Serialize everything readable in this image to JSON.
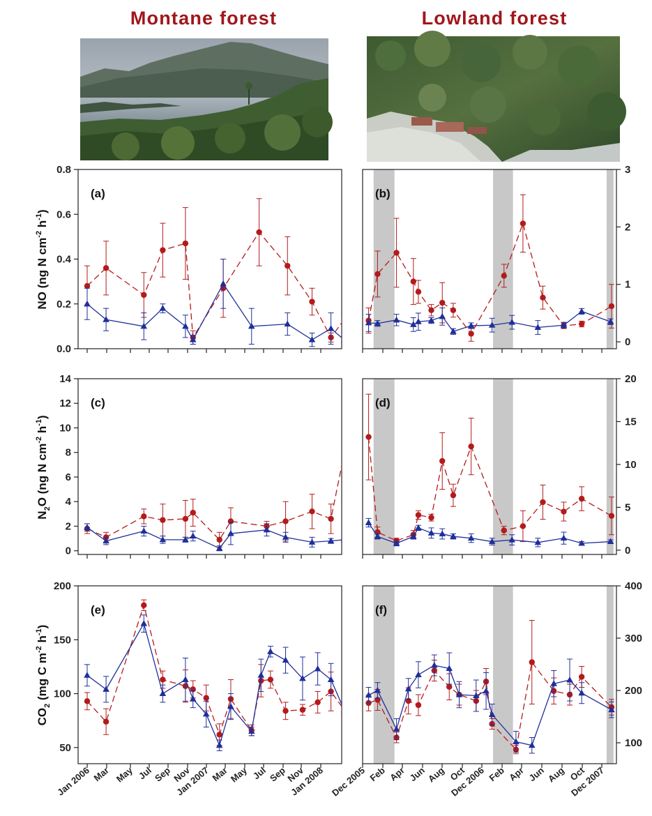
{
  "columns": [
    {
      "title": "Montane forest",
      "photo": "montane-lake-forest-photo"
    },
    {
      "title": "Lowland forest",
      "photo": "lowland-forest-aerial-photo"
    }
  ],
  "colors": {
    "title": "#a0161b",
    "red": "#b31b1b",
    "blue": "#1f2f9a",
    "shade": "#c8c8c8"
  },
  "x_tick_labels": {
    "montane": [
      "Jan 2006",
      "Mar",
      "May",
      "Jul",
      "Sep",
      "Nov",
      "Jan 2007",
      "Mar",
      "May",
      "Jul",
      "Sep",
      "Nov",
      "Jan 2008"
    ],
    "lowland": [
      "Dec 2005",
      "Feb",
      "Apr",
      "Jun",
      "Aug",
      "Oct",
      "Dec 2006",
      "Feb",
      "Apr",
      "Jun",
      "Aug",
      "Oct",
      "Dec 2007"
    ]
  },
  "rows": [
    {
      "ylabel_parts": [
        "NO (ng N cm",
        "-2",
        " h",
        "-1",
        ")"
      ]
    },
    {
      "ylabel_parts": [
        "N",
        "2",
        "O (ng N cm",
        "-2",
        " h",
        "-1",
        ")"
      ]
    },
    {
      "ylabel_parts": [
        "CO",
        "2",
        " (mg C m",
        "-2",
        " h",
        "-1",
        ")"
      ]
    }
  ],
  "chart_data": [
    {
      "id": "a",
      "type": "line",
      "panel_label": "(a)",
      "site": "Montane forest",
      "x_unit": "month index (0 = Jan 2006)",
      "ylim": [
        0,
        0.8
      ],
      "yticks": [
        "0.0",
        "0.2",
        "0.4",
        "0.6",
        "0.8"
      ],
      "ytick_values": [
        0,
        0.2,
        0.4,
        0.6,
        0.8
      ],
      "yaxis_side": "left",
      "dry_season_shading": [],
      "series": [
        {
          "color": "red",
          "marker": "circle",
          "dashed": true,
          "x": [
            0,
            1,
            3,
            4,
            5.2,
            5.6,
            7.2,
            9.1,
            10.6,
            11.9,
            12.9,
            13.6
          ],
          "y": [
            0.28,
            0.36,
            0.24,
            0.44,
            0.47,
            0.05,
            0.27,
            0.52,
            0.37,
            0.21,
            0.05,
            0.13
          ],
          "err": [
            0.09,
            0.12,
            0.1,
            0.12,
            0.16,
            0.03,
            0.13,
            0.15,
            0.13,
            0.06,
            0.02,
            0.01
          ]
        },
        {
          "color": "blue",
          "marker": "triangle",
          "dashed": false,
          "x": [
            0,
            1,
            3,
            4,
            5.2,
            5.6,
            7.2,
            8.7,
            10.6,
            11.9,
            12.9,
            13.6
          ],
          "y": [
            0.2,
            0.13,
            0.1,
            0.18,
            0.1,
            0.04,
            0.29,
            0.1,
            0.11,
            0.04,
            0.09,
            0.04
          ],
          "err": [
            0.07,
            0.05,
            0.06,
            0.02,
            0.05,
            0.02,
            0.11,
            0.08,
            0.05,
            0.03,
            0.07,
            0.04
          ]
        }
      ]
    },
    {
      "id": "b",
      "type": "line",
      "panel_label": "(b)",
      "site": "Lowland forest",
      "x_unit": "month index (0 = Dec 2005)",
      "ylim": [
        -0.12,
        3
      ],
      "yticks": [
        "0",
        "1",
        "2",
        "3"
      ],
      "ytick_values": [
        0,
        1,
        2,
        3
      ],
      "yaxis_side": "right",
      "dry_season_shading": [
        [
          1.1,
          3.2
        ],
        [
          13.1,
          15.1
        ],
        [
          24.5,
          25.2
        ]
      ],
      "series": [
        {
          "color": "red",
          "marker": "circle",
          "dashed": true,
          "x": [
            0.6,
            1.5,
            3.4,
            5.1,
            5.6,
            6.9,
            8.0,
            9.1,
            10.9,
            14.2,
            16.1,
            18.1,
            20.2,
            22.0,
            25.0
          ],
          "y": [
            0.37,
            1.18,
            1.55,
            1.05,
            0.87,
            0.55,
            0.68,
            0.55,
            0.14,
            1.15,
            2.06,
            0.77,
            0.28,
            0.31,
            0.62
          ],
          "err": [
            0.22,
            0.4,
            0.6,
            0.4,
            0.2,
            0.1,
            0.35,
            0.12,
            0.13,
            0.2,
            0.5,
            0.2,
            0.05,
            0.05,
            0.38
          ]
        },
        {
          "color": "blue",
          "marker": "triangle",
          "dashed": false,
          "x": [
            0.6,
            1.5,
            3.4,
            5.1,
            5.6,
            6.9,
            8.0,
            9.1,
            10.9,
            13.0,
            15.0,
            17.6,
            20.2,
            22.0,
            24.9
          ],
          "y": [
            0.33,
            0.32,
            0.38,
            0.3,
            0.35,
            0.37,
            0.44,
            0.18,
            0.28,
            0.29,
            0.34,
            0.25,
            0.29,
            0.53,
            0.35
          ],
          "err": [
            0.15,
            0.05,
            0.1,
            0.12,
            0.15,
            0.05,
            0.15,
            0.05,
            0.05,
            0.12,
            0.12,
            0.12,
            0.05,
            0.05,
            0.05
          ]
        }
      ]
    },
    {
      "id": "c",
      "type": "line",
      "panel_label": "(c)",
      "site": "Montane forest",
      "x_unit": "month index (0 = Jan 2006)",
      "ylim": [
        -0.3,
        14
      ],
      "yticks": [
        "0",
        "2",
        "4",
        "6",
        "8",
        "10",
        "12",
        "14"
      ],
      "ytick_values": [
        0,
        2,
        4,
        6,
        8,
        10,
        12,
        14
      ],
      "yaxis_side": "left",
      "dry_season_shading": [],
      "series": [
        {
          "color": "red",
          "marker": "circle",
          "dashed": true,
          "x": [
            0,
            1,
            3,
            4,
            5.2,
            5.6,
            7.0,
            7.6,
            9.5,
            10.5,
            11.9,
            12.9,
            13.6
          ],
          "y": [
            1.8,
            1.1,
            2.8,
            2.5,
            2.6,
            3.1,
            0.9,
            2.4,
            2.0,
            2.4,
            3.2,
            2.6,
            7.9
          ],
          "err": [
            0.4,
            0.4,
            0.6,
            1.3,
            1.5,
            1.1,
            0.6,
            1.1,
            0.4,
            1.6,
            1.4,
            1.2,
            5.8
          ]
        },
        {
          "color": "blue",
          "marker": "triangle",
          "dashed": false,
          "x": [
            0,
            1,
            3,
            4,
            5.2,
            5.6,
            7.0,
            7.6,
            9.5,
            10.5,
            11.9,
            12.9,
            13.6
          ],
          "y": [
            1.9,
            0.8,
            1.6,
            0.9,
            0.9,
            1.2,
            0.2,
            1.4,
            1.7,
            1.1,
            0.7,
            0.8,
            0.9
          ],
          "err": [
            0.3,
            0.3,
            0.4,
            0.3,
            0.2,
            0.4,
            0.2,
            0.9,
            0.5,
            0.4,
            0.4,
            0.2,
            0.4
          ]
        }
      ]
    },
    {
      "id": "d",
      "type": "line",
      "panel_label": "(d)",
      "site": "Lowland forest",
      "x_unit": "month index (0 = Dec 2005)",
      "ylim": [
        -0.5,
        20
      ],
      "yticks": [
        "0",
        "5",
        "10",
        "15",
        "20"
      ],
      "ytick_values": [
        0,
        5,
        10,
        15,
        20
      ],
      "yaxis_side": "right",
      "dry_season_shading": [
        [
          1.1,
          3.2
        ],
        [
          13.1,
          15.1
        ],
        [
          24.5,
          25.2
        ]
      ],
      "series": [
        {
          "color": "red",
          "marker": "circle",
          "dashed": true,
          "x": [
            0.6,
            1.5,
            3.4,
            5.1,
            5.6,
            6.9,
            8.0,
            9.1,
            10.9,
            14.2,
            16.1,
            18.1,
            20.2,
            22.0,
            25.0
          ],
          "y": [
            13.2,
            2.1,
            1.1,
            1.8,
            4.1,
            3.8,
            10.4,
            6.4,
            12.1,
            2.3,
            2.8,
            5.6,
            4.5,
            6.0,
            4.0
          ],
          "err": [
            5.0,
            0.6,
            0.3,
            0.5,
            0.5,
            0.4,
            3.3,
            1.3,
            3.3,
            0.5,
            1.8,
            2.0,
            1.1,
            1.4,
            2.2
          ]
        },
        {
          "color": "blue",
          "marker": "triangle",
          "dashed": false,
          "x": [
            0.6,
            1.5,
            3.4,
            5.1,
            5.6,
            6.9,
            8.0,
            9.1,
            10.9,
            13.0,
            15.0,
            17.6,
            20.2,
            22.0,
            24.9
          ],
          "y": [
            3.2,
            1.6,
            0.8,
            1.6,
            2.6,
            2.0,
            1.9,
            1.6,
            1.4,
            1.0,
            1.2,
            0.9,
            1.4,
            0.8,
            1.0
          ],
          "err": [
            0.5,
            0.3,
            0.3,
            0.3,
            0.3,
            0.6,
            0.6,
            0.3,
            0.5,
            0.4,
            0.6,
            0.5,
            0.7,
            0.2,
            0.2
          ]
        }
      ]
    },
    {
      "id": "e",
      "type": "line",
      "panel_label": "(e)",
      "site": "Montane forest",
      "x_unit": "month index (0 = Jan 2006)",
      "ylim": [
        35,
        200
      ],
      "yticks": [
        "50",
        "100",
        "150",
        "200"
      ],
      "ytick_values": [
        50,
        100,
        150,
        200
      ],
      "yaxis_side": "left",
      "dry_season_shading": [],
      "series": [
        {
          "color": "red",
          "marker": "circle",
          "dashed": true,
          "x": [
            0,
            1,
            3,
            4,
            5.2,
            5.6,
            6.3,
            7.0,
            7.6,
            8.7,
            9.2,
            9.7,
            10.5,
            11.4,
            12.2,
            12.9,
            13.6
          ],
          "y": [
            93,
            74,
            182,
            113,
            107,
            104,
            96,
            62,
            95,
            66,
            112,
            113,
            84,
            85,
            92,
            102,
            85
          ],
          "err": [
            8,
            12,
            5,
            8,
            15,
            8,
            12,
            10,
            18,
            5,
            15,
            8,
            8,
            5,
            10,
            18,
            10
          ]
        },
        {
          "color": "blue",
          "marker": "triangle",
          "dashed": false,
          "x": [
            0,
            1,
            3,
            4,
            5.2,
            5.6,
            6.3,
            7.0,
            7.6,
            8.7,
            9.2,
            9.7,
            10.5,
            11.4,
            12.2,
            12.9,
            13.6
          ],
          "y": [
            117,
            104,
            165,
            100,
            113,
            95,
            81,
            52,
            88,
            65,
            117,
            139,
            131,
            114,
            123,
            113,
            85
          ],
          "err": [
            10,
            12,
            8,
            8,
            20,
            8,
            12,
            5,
            12,
            4,
            15,
            5,
            12,
            20,
            15,
            15,
            8
          ]
        }
      ]
    },
    {
      "id": "f",
      "type": "line",
      "panel_label": "(f)",
      "site": "Lowland forest",
      "x_unit": "month index (0 = Dec 2005)",
      "ylim": [
        60,
        400
      ],
      "yticks": [
        "100",
        "200",
        "300",
        "400"
      ],
      "ytick_values": [
        100,
        200,
        300,
        400
      ],
      "yaxis_side": "right",
      "dry_season_shading": [
        [
          1.1,
          3.2
        ],
        [
          13.1,
          15.1
        ],
        [
          24.5,
          25.2
        ]
      ],
      "series": [
        {
          "color": "red",
          "marker": "circle",
          "dashed": true,
          "x": [
            0.6,
            1.5,
            3.4,
            4.6,
            5.6,
            7.2,
            8.7,
            9.7,
            11.4,
            12.4,
            13.0,
            15.4,
            17.0,
            19.2,
            20.8,
            22.0,
            25.0
          ],
          "y": [
            176,
            182,
            110,
            180,
            172,
            238,
            207,
            192,
            180,
            217,
            136,
            87,
            254,
            199,
            192,
            226,
            168
          ],
          "err": [
            15,
            20,
            10,
            25,
            20,
            20,
            25,
            20,
            20,
            25,
            10,
            8,
            80,
            25,
            20,
            20,
            15
          ]
        },
        {
          "color": "blue",
          "marker": "triangle",
          "dashed": false,
          "x": [
            0.6,
            1.5,
            3.4,
            4.6,
            5.6,
            7.2,
            8.7,
            9.7,
            11.4,
            12.4,
            13.0,
            15.4,
            17.0,
            19.2,
            20.8,
            22.0,
            25.0
          ],
          "y": [
            191,
            200,
            126,
            203,
            230,
            248,
            242,
            192,
            190,
            199,
            154,
            102,
            95,
            213,
            220,
            195,
            163
          ],
          "err": [
            15,
            15,
            20,
            20,
            25,
            20,
            30,
            25,
            30,
            35,
            20,
            20,
            15,
            25,
            40,
            20,
            15
          ]
        }
      ]
    }
  ]
}
